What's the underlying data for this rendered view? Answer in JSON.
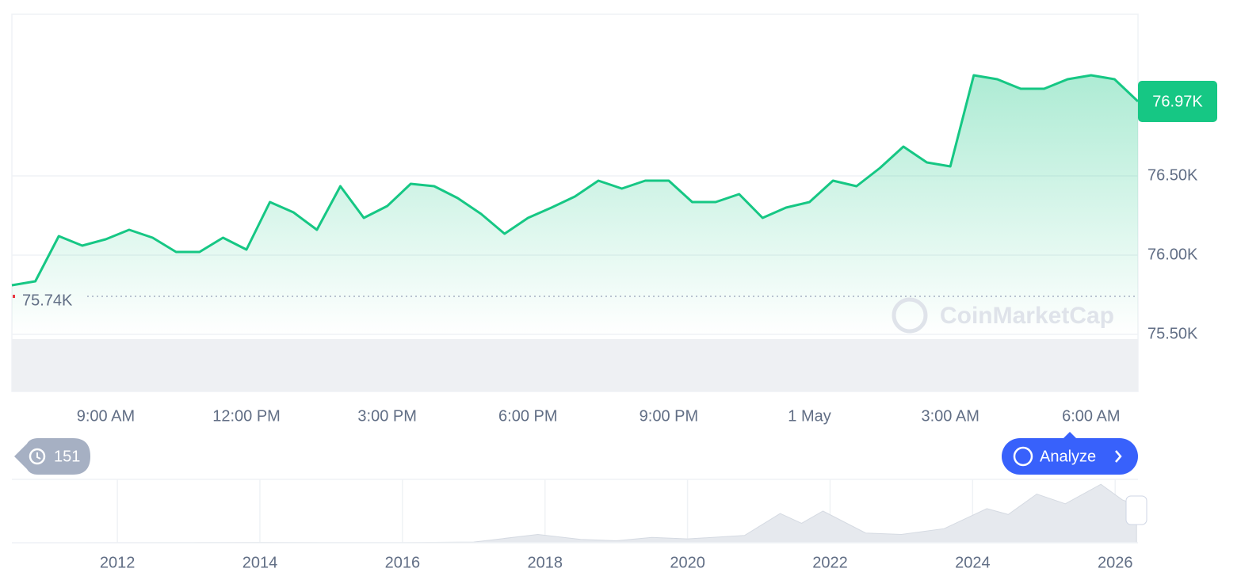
{
  "chart_data": {
    "type": "line",
    "series": [
      {
        "name": "Price",
        "color": "#16c784",
        "values": [
          75810,
          75835,
          76120,
          76060,
          76100,
          76160,
          76110,
          76020,
          76020,
          76110,
          76035,
          76335,
          76270,
          76160,
          76435,
          76235,
          76310,
          76450,
          76435,
          76360,
          76260,
          76135,
          76235,
          76300,
          76370,
          76470,
          76420,
          76470,
          76470,
          76335,
          76335,
          76385,
          76235,
          76300,
          76335,
          76470,
          76435,
          76550,
          76685,
          76585,
          76560,
          77135,
          77110,
          77050,
          77050,
          77110,
          77135,
          77110,
          76970
        ]
      }
    ],
    "xticks": [
      {
        "value": 4,
        "label": "9:00 AM"
      },
      {
        "value": 10,
        "label": "12:00 PM"
      },
      {
        "value": 16,
        "label": "3:00 PM"
      },
      {
        "value": 22,
        "label": "6:00 PM"
      },
      {
        "value": 28,
        "label": "9:00 PM"
      },
      {
        "value": 34,
        "label": "1 May"
      },
      {
        "value": 40,
        "label": "3:00 AM"
      },
      {
        "value": 46,
        "label": "6:00 AM"
      }
    ],
    "ylim": [
      75140,
      77520
    ],
    "yticks": [
      {
        "value": 75500,
        "label": "75.50K"
      },
      {
        "value": 76000,
        "label": "76.00K"
      },
      {
        "value": 76500,
        "label": "76.50K"
      }
    ],
    "grid": true,
    "current_price": {
      "value": 76970,
      "label": "76.97K"
    },
    "open_price": {
      "value": 75740,
      "label": "75.74K"
    },
    "watermark": "CoinMarketCap",
    "history_count": 151,
    "analyze_button": "Analyze",
    "overview": {
      "x": [
        2010.6,
        2013,
        2014,
        2015,
        2016,
        2017,
        2017.9,
        2018.5,
        2019,
        2019.5,
        2020,
        2020.8,
        2021.3,
        2021.6,
        2021.9,
        2022.5,
        2023,
        2023.6,
        2024.2,
        2024.5,
        2024.9,
        2025.3,
        2025.8,
        2026.1,
        2026.3
      ],
      "values": [
        0,
        0.5,
        0.8,
        0.4,
        0.4,
        1.5,
        17,
        7,
        4,
        11,
        8,
        15,
        60,
        40,
        65,
        20,
        17,
        29,
        70,
        58,
        100,
        80,
        120,
        88,
        77
      ],
      "xlim": [
        2010.52,
        2026.32
      ],
      "ylim": [
        0,
        130
      ],
      "xticks": [
        2012,
        2014,
        2016,
        2018,
        2020,
        2022,
        2024,
        2026
      ]
    }
  }
}
